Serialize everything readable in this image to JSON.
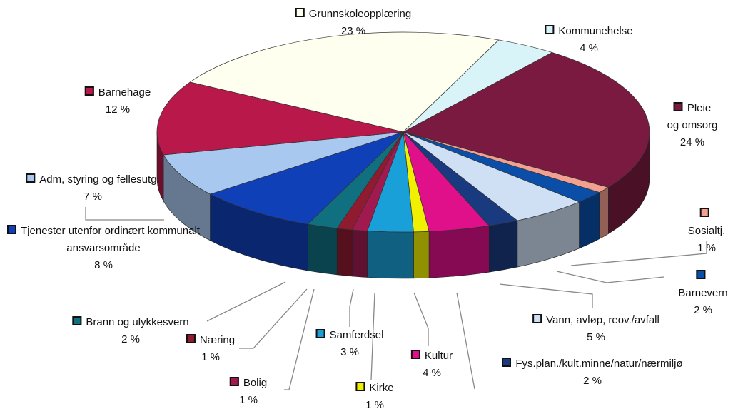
{
  "chart_data": {
    "type": "pie3d",
    "categories": [
      "Grunnskoleopplæring",
      "Kommunehelse",
      "Pleie og omsorg",
      "Sosialtj.",
      "Barnevern",
      "Vann, avløp, reov./avfall",
      "Fys.plan./kult.minne/natur/nærmiljø",
      "Kultur",
      "Kirke",
      "Samferdsel",
      "Bolig",
      "Næring",
      "Brann og ulykkesvern",
      "Tjenester utenfor ordinært kommunalt ansvarsområde",
      "Adm, styring og fellesutg.",
      "Barnehage"
    ],
    "values": [
      23,
      4,
      24,
      1,
      2,
      5,
      2,
      4,
      1,
      3,
      1,
      1,
      2,
      8,
      7,
      12
    ],
    "value_labels": [
      "23 %",
      "4 %",
      "24 %",
      "1 %",
      "2 %",
      "5 %",
      "2 %",
      "4 %",
      "1 %",
      "3 %",
      "1 %",
      "1 %",
      "2 %",
      "8 %",
      "7 %",
      "12 %"
    ],
    "colors": [
      "#fffff0",
      "#d8f4f8",
      "#7a1a40",
      "#f4a090",
      "#0a4ea8",
      "#cfe0f4",
      "#1a3a80",
      "#e0108a",
      "#f0f000",
      "#1aa0d8",
      "#a01a50",
      "#901a30",
      "#107080",
      "#1040b8",
      "#a8c8f0",
      "#b8184a"
    ]
  }
}
